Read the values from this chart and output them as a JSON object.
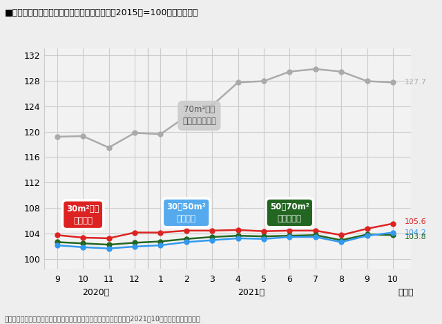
{
  "title": "■神奈川県－マンション平均家賃指数の推移（2015年=100としたもの）",
  "source": "出典：全国主要都市の「賃貸マンション・アパート」募集家賃動向（2021年10月）アットホーム調べ",
  "year_label_2020": "2020年",
  "year_label_2021": "2021年",
  "month_label": "（月）",
  "x_ticks_labels": [
    "9",
    "10",
    "11",
    "12",
    "1",
    "2",
    "3",
    "4",
    "5",
    "6",
    "7",
    "8",
    "9",
    "10"
  ],
  "ylim": [
    98.5,
    133
  ],
  "yticks": [
    100,
    104,
    108,
    112,
    116,
    120,
    124,
    128,
    132
  ],
  "gray_values": [
    119.2,
    119.3,
    117.5,
    119.8,
    119.6,
    122.4,
    124.1,
    127.7,
    127.9,
    129.4,
    129.8,
    129.4,
    127.9,
    127.7
  ],
  "red_values": [
    103.8,
    103.4,
    103.3,
    104.2,
    104.2,
    104.5,
    104.5,
    104.6,
    104.4,
    104.5,
    104.5,
    103.8,
    104.8,
    105.6
  ],
  "blue_values": [
    102.2,
    101.9,
    101.7,
    102.0,
    102.2,
    102.7,
    103.0,
    103.3,
    103.2,
    103.5,
    103.5,
    102.7,
    103.7,
    104.2
  ],
  "green_values": [
    102.7,
    102.5,
    102.3,
    102.6,
    102.8,
    103.2,
    103.5,
    103.7,
    103.6,
    103.7,
    103.8,
    103.0,
    103.9,
    103.8
  ],
  "gray_color": "#aaaaaa",
  "red_color": "#dd2222",
  "blue_color": "#3399ee",
  "green_color": "#226622",
  "red_end": "105.6",
  "blue_end": "104.2",
  "green_end": "103.8",
  "gray_end": "127.7",
  "background_color": "#eeeeee",
  "plot_bg_color": "#f2f2f2",
  "grid_color": "#dddddd"
}
